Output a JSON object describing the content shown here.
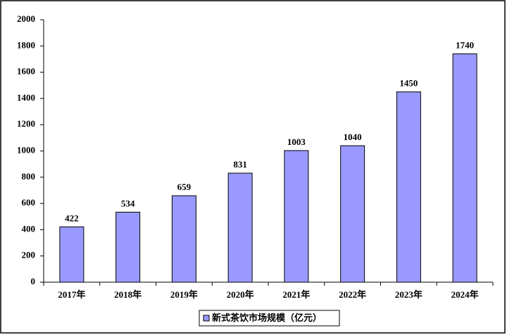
{
  "chart_data": {
    "type": "bar",
    "categories": [
      "2017年",
      "2018年",
      "2019年",
      "2020年",
      "2021年",
      "2022年",
      "2023年",
      "2024年"
    ],
    "series": [
      {
        "name": "新式茶饮市场规模（亿元）",
        "color": "#9999ff",
        "values": [
          422,
          534,
          659,
          831,
          1003,
          1040,
          1450,
          1740
        ]
      }
    ],
    "ylim": [
      0,
      2000
    ],
    "yticks": [
      0,
      200,
      400,
      600,
      800,
      1000,
      1200,
      1400,
      1600,
      1800,
      2000
    ],
    "grid": false,
    "legend": "bottom"
  }
}
